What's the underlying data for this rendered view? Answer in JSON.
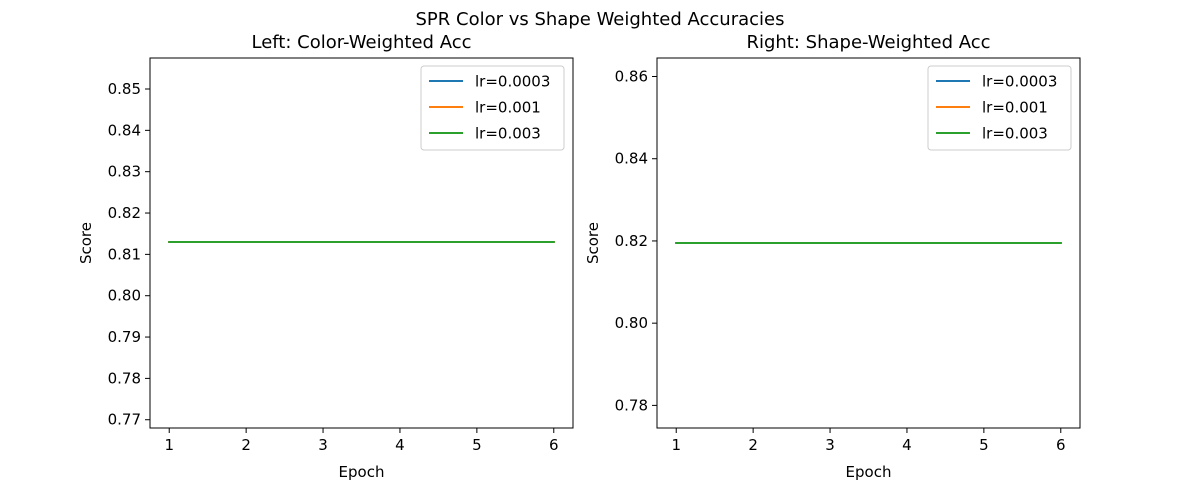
{
  "figure": {
    "suptitle": "SPR Color vs Shape Weighted Accuracies"
  },
  "chart_data": [
    {
      "type": "line",
      "title": "Left: Color-Weighted Acc",
      "xlabel": "Epoch",
      "ylabel": "Score",
      "xlim": [
        0.75,
        6.25
      ],
      "ylim": [
        0.768,
        0.8575
      ],
      "xticks": [
        1,
        2,
        3,
        4,
        5,
        6
      ],
      "yticks": [
        0.77,
        0.78,
        0.79,
        0.8,
        0.81,
        0.82,
        0.83,
        0.84,
        0.85
      ],
      "ytick_labels": [
        "0.77",
        "0.78",
        "0.79",
        "0.80",
        "0.81",
        "0.82",
        "0.83",
        "0.84",
        "0.85"
      ],
      "legend": "top-right",
      "grid": false,
      "x": [
        1,
        2,
        3,
        4,
        5,
        6
      ],
      "series": [
        {
          "name": "lr=0.0003",
          "color": "#1f77b4",
          "values": [
            0.813,
            0.813,
            0.813,
            0.813,
            0.813,
            0.813
          ]
        },
        {
          "name": "lr=0.001",
          "color": "#ff7f0e",
          "values": [
            0.813,
            0.813,
            0.813,
            0.813,
            0.813,
            0.813
          ]
        },
        {
          "name": "lr=0.003",
          "color": "#2ca02c",
          "values": [
            0.813,
            0.813,
            0.813,
            0.813,
            0.813,
            0.813
          ]
        }
      ]
    },
    {
      "type": "line",
      "title": "Right: Shape-Weighted Acc",
      "xlabel": "Epoch",
      "ylabel": "Score",
      "xlim": [
        0.75,
        6.25
      ],
      "ylim": [
        0.7745,
        0.8645
      ],
      "xticks": [
        1,
        2,
        3,
        4,
        5,
        6
      ],
      "yticks": [
        0.78,
        0.8,
        0.82,
        0.84,
        0.86
      ],
      "ytick_labels": [
        "0.78",
        "0.80",
        "0.82",
        "0.84",
        "0.86"
      ],
      "legend": "top-right",
      "grid": false,
      "x": [
        1,
        2,
        3,
        4,
        5,
        6
      ],
      "series": [
        {
          "name": "lr=0.0003",
          "color": "#1f77b4",
          "values": [
            0.8195,
            0.8195,
            0.8195,
            0.8195,
            0.8195,
            0.8195
          ]
        },
        {
          "name": "lr=0.001",
          "color": "#ff7f0e",
          "values": [
            0.8195,
            0.8195,
            0.8195,
            0.8195,
            0.8195,
            0.8195
          ]
        },
        {
          "name": "lr=0.003",
          "color": "#2ca02c",
          "values": [
            0.8195,
            0.8195,
            0.8195,
            0.8195,
            0.8195,
            0.8195
          ]
        }
      ]
    }
  ]
}
